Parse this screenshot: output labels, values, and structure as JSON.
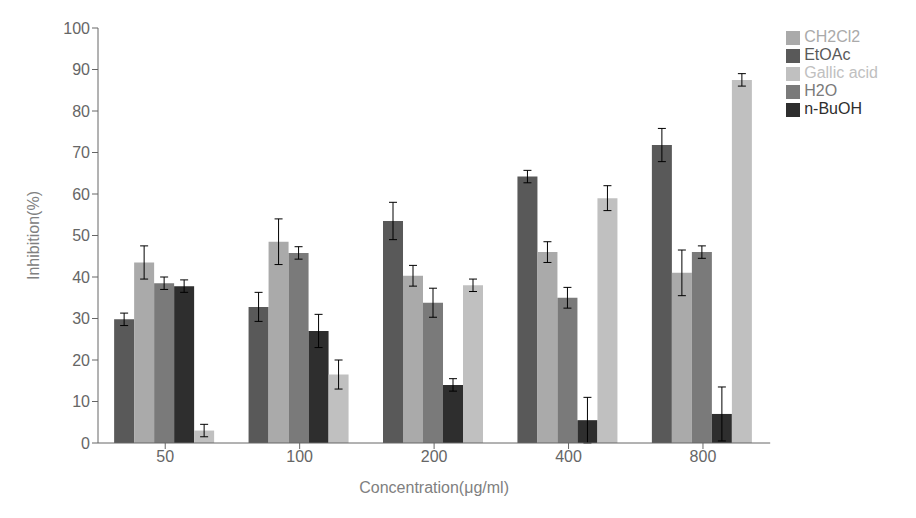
{
  "chart_data": {
    "type": "bar",
    "categories": [
      "50",
      "100",
      "200",
      "400",
      "800"
    ],
    "series": [
      {
        "name": "EtOAc",
        "color": "#595959",
        "values": [
          29.8,
          32.8,
          53.5,
          64.2,
          71.8
        ],
        "errors": [
          1.5,
          3.5,
          4.5,
          1.5,
          4.0
        ]
      },
      {
        "name": "CH2Cl2",
        "color": "#aaaaaa",
        "values": [
          43.5,
          48.5,
          40.3,
          46.0,
          41.0
        ],
        "errors": [
          4.0,
          5.5,
          2.5,
          2.5,
          5.5
        ]
      },
      {
        "name": "H2O",
        "color": "#7a7a7a",
        "values": [
          38.5,
          45.8,
          33.8,
          35.0,
          46.0
        ],
        "errors": [
          1.5,
          1.5,
          3.5,
          2.5,
          1.5
        ]
      },
      {
        "name": "n-BuOH",
        "color": "#2e2e2e",
        "values": [
          37.8,
          27.0,
          14.0,
          5.5,
          7.0
        ],
        "errors": [
          1.5,
          4.0,
          1.5,
          5.5,
          6.5
        ]
      },
      {
        "name": "Gallic acid",
        "color": "#c0c0c0",
        "values": [
          3.0,
          16.5,
          38.0,
          59.0,
          87.5
        ],
        "errors": [
          1.5,
          3.5,
          1.5,
          3.0,
          1.5
        ]
      }
    ],
    "xlabel": "Concentration(μg/ml)",
    "ylabel": "Inhibition(%)",
    "ylim": [
      0,
      100
    ],
    "yticks": [
      0,
      10,
      20,
      30,
      40,
      50,
      60,
      70,
      80,
      90,
      100
    ],
    "grid": false,
    "legend": "right"
  }
}
